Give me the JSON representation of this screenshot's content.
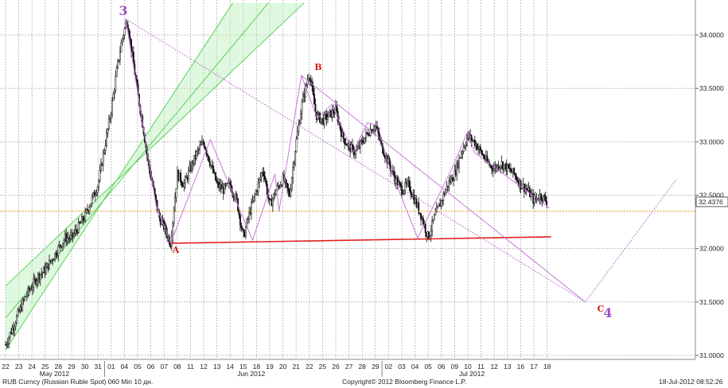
{
  "chart_data": {
    "type": "candlestick",
    "title": "",
    "instrument": "RUB Curncy (Russian Ruble Spot) 060 Min 10 дн.",
    "copyright": "Copyright© 2012 Bloomberg Finance L.P.",
    "timestamp": "18-Jul-2012 08:52:26",
    "last_price": "32.4376",
    "y_ticks": [
      "34.0000",
      "33.5000",
      "33.0000",
      "32.5000",
      "32.0000",
      "31.5000",
      "31.0000"
    ],
    "y_tick_values": [
      34.0,
      33.5,
      33.0,
      32.5,
      32.0,
      31.5,
      31.0
    ],
    "ylim": [
      30.85,
      34.3
    ],
    "x_days": [
      "22",
      "23",
      "24",
      "25",
      "28",
      "29",
      "30",
      "31",
      "01",
      "04",
      "05",
      "06",
      "07",
      "08",
      "11",
      "12",
      "13",
      "14",
      "15",
      "18",
      "19",
      "20",
      "21",
      "22",
      "25",
      "26",
      "27",
      "28",
      "29",
      "02",
      "03",
      "04",
      "05",
      "06",
      "09",
      "10",
      "11",
      "12",
      "13",
      "16",
      "17",
      "18"
    ],
    "months": [
      "May 2012",
      "Jun 2012",
      "Jul 2012"
    ],
    "wave_labels": [
      "3",
      "A",
      "B",
      "C",
      "4"
    ],
    "grid": true,
    "price_path": [
      {
        "d": 0,
        "v": 31.1
      },
      {
        "d": 0.5,
        "v": 31.25
      },
      {
        "d": 1,
        "v": 31.4
      },
      {
        "d": 1.5,
        "v": 31.55
      },
      {
        "d": 2,
        "v": 31.65
      },
      {
        "d": 2.5,
        "v": 31.75
      },
      {
        "d": 3,
        "v": 31.8
      },
      {
        "d": 3.5,
        "v": 31.9
      },
      {
        "d": 4,
        "v": 32.0
      },
      {
        "d": 4.5,
        "v": 32.1
      },
      {
        "d": 5,
        "v": 32.1
      },
      {
        "d": 5.5,
        "v": 32.2
      },
      {
        "d": 6,
        "v": 32.3
      },
      {
        "d": 6.5,
        "v": 32.45
      },
      {
        "d": 7,
        "v": 32.6
      },
      {
        "d": 7.5,
        "v": 32.95
      },
      {
        "d": 8,
        "v": 33.3
      },
      {
        "d": 8.4,
        "v": 33.65
      },
      {
        "d": 8.8,
        "v": 33.95
      },
      {
        "d": 9.2,
        "v": 34.15
      },
      {
        "d": 9.6,
        "v": 33.8
      },
      {
        "d": 10,
        "v": 33.45
      },
      {
        "d": 10.4,
        "v": 33.15
      },
      {
        "d": 10.8,
        "v": 32.8
      },
      {
        "d": 11.2,
        "v": 32.55
      },
      {
        "d": 11.6,
        "v": 32.3
      },
      {
        "d": 12,
        "v": 32.2
      },
      {
        "d": 12.5,
        "v": 32.05
      },
      {
        "d": 13,
        "v": 32.7
      },
      {
        "d": 13.5,
        "v": 32.6
      },
      {
        "d": 14,
        "v": 32.75
      },
      {
        "d": 14.5,
        "v": 32.9
      },
      {
        "d": 15,
        "v": 33.0
      },
      {
        "d": 15.5,
        "v": 32.8
      },
      {
        "d": 16,
        "v": 32.6
      },
      {
        "d": 16.5,
        "v": 32.55
      },
      {
        "d": 17,
        "v": 32.6
      },
      {
        "d": 17.5,
        "v": 32.45
      },
      {
        "d": 18,
        "v": 32.1
      },
      {
        "d": 18.5,
        "v": 32.35
      },
      {
        "d": 19,
        "v": 32.55
      },
      {
        "d": 19.5,
        "v": 32.75
      },
      {
        "d": 20,
        "v": 32.4
      },
      {
        "d": 20.5,
        "v": 32.55
      },
      {
        "d": 21,
        "v": 32.65
      },
      {
        "d": 21.5,
        "v": 32.5
      },
      {
        "d": 22,
        "v": 33.0
      },
      {
        "d": 22.5,
        "v": 33.4
      },
      {
        "d": 23,
        "v": 33.65
      },
      {
        "d": 23.5,
        "v": 33.25
      },
      {
        "d": 24,
        "v": 33.2
      },
      {
        "d": 24.5,
        "v": 33.25
      },
      {
        "d": 25,
        "v": 33.3
      },
      {
        "d": 25.5,
        "v": 33.05
      },
      {
        "d": 26,
        "v": 32.95
      },
      {
        "d": 26.5,
        "v": 32.9
      },
      {
        "d": 27,
        "v": 33.0
      },
      {
        "d": 27.5,
        "v": 33.1
      },
      {
        "d": 28,
        "v": 33.15
      },
      {
        "d": 28.5,
        "v": 32.95
      },
      {
        "d": 29,
        "v": 32.8
      },
      {
        "d": 29.5,
        "v": 32.65
      },
      {
        "d": 30,
        "v": 32.55
      },
      {
        "d": 30.5,
        "v": 32.6
      },
      {
        "d": 31,
        "v": 32.45
      },
      {
        "d": 31.5,
        "v": 32.3
      },
      {
        "d": 32,
        "v": 32.1
      },
      {
        "d": 32.5,
        "v": 32.3
      },
      {
        "d": 33,
        "v": 32.45
      },
      {
        "d": 33.5,
        "v": 32.6
      },
      {
        "d": 34,
        "v": 32.7
      },
      {
        "d": 34.5,
        "v": 32.9
      },
      {
        "d": 35,
        "v": 33.05
      },
      {
        "d": 35.5,
        "v": 33.0
      },
      {
        "d": 36,
        "v": 32.9
      },
      {
        "d": 36.5,
        "v": 32.8
      },
      {
        "d": 37,
        "v": 32.75
      },
      {
        "d": 37.5,
        "v": 32.8
      },
      {
        "d": 38,
        "v": 32.75
      },
      {
        "d": 38.5,
        "v": 32.7
      },
      {
        "d": 39,
        "v": 32.6
      },
      {
        "d": 39.5,
        "v": 32.55
      },
      {
        "d": 40,
        "v": 32.45
      },
      {
        "d": 40.5,
        "v": 32.5
      },
      {
        "d": 41,
        "v": 32.44
      }
    ],
    "reference_level": 32.35,
    "support_line": {
      "from": {
        "d": 12.5,
        "v": 32.05
      },
      "to": {
        "d": 41.3,
        "v": 32.11
      }
    },
    "down_trend_line": {
      "from": {
        "d": 9.1,
        "v": 34.15
      },
      "to": {
        "d": 43.9,
        "v": 31.5
      }
    },
    "upper_trend_line": {
      "from": {
        "d": 22.4,
        "v": 33.62
      },
      "to": {
        "d": 43.9,
        "v": 31.5
      }
    },
    "projection_line": {
      "from": {
        "d": 43.9,
        "v": 31.5
      },
      "to": {
        "d": 50.8,
        "v": 32.65
      }
    },
    "wave_zigzag": [
      {
        "d": 9.1,
        "v": 34.15
      },
      {
        "d": 11.4,
        "v": 32.4
      },
      {
        "d": 12.5,
        "v": 32.05
      },
      {
        "d": 15.5,
        "v": 33.02
      },
      {
        "d": 18.7,
        "v": 32.08
      },
      {
        "d": 20.4,
        "v": 32.7
      },
      {
        "d": 20.7,
        "v": 32.35
      },
      {
        "d": 22.4,
        "v": 33.62
      },
      {
        "d": 23.6,
        "v": 33.22
      },
      {
        "d": 24.7,
        "v": 33.35
      },
      {
        "d": 26.3,
        "v": 32.9
      },
      {
        "d": 27.4,
        "v": 33.18
      },
      {
        "d": 28.2,
        "v": 33.15
      },
      {
        "d": 28.9,
        "v": 32.82
      },
      {
        "d": 31.2,
        "v": 32.1
      },
      {
        "d": 33.8,
        "v": 32.75
      },
      {
        "d": 35.0,
        "v": 33.1
      },
      {
        "d": 35.5,
        "v": 32.9
      },
      {
        "d": 41.2,
        "v": 32.38
      }
    ],
    "channel_band": {
      "lower_from": {
        "d": 0.0,
        "v": 31.05
      },
      "lower_to": {
        "d": 17.2,
        "v": 34.3
      },
      "upper_from": {
        "d": 0.0,
        "v": 31.65
      },
      "upper_to": {
        "d": 22.6,
        "v": 34.3
      }
    }
  }
}
